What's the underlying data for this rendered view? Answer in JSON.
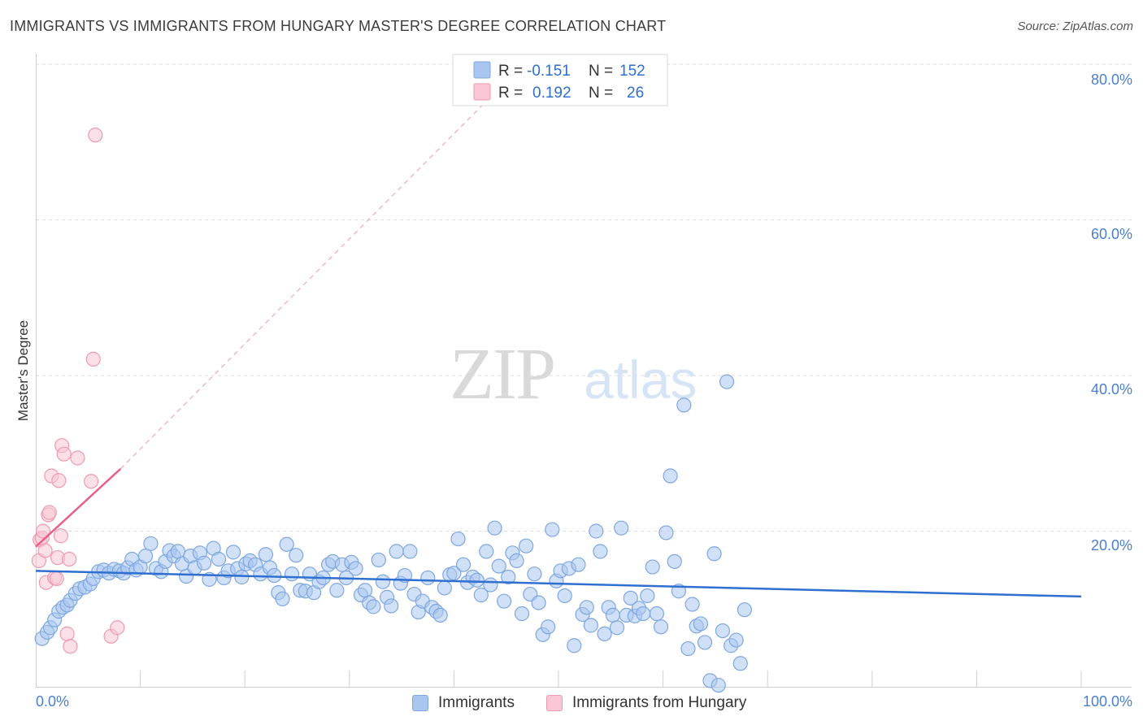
{
  "header": {
    "title": "IMMIGRANTS VS IMMIGRANTS FROM HUNGARY MASTER'S DEGREE CORRELATION CHART",
    "source": "Source: ZipAtlas.com"
  },
  "watermark": {
    "zip": "ZIP",
    "atlas": "atlas"
  },
  "legend_box": {
    "rows": [
      {
        "r_label": "R =",
        "r_value": "-0.151",
        "n_label": "N =",
        "n_value": "152",
        "color": "#a9c6ef"
      },
      {
        "r_label": "R =",
        "r_value": "0.192",
        "n_label": "N =",
        "n_value": "26",
        "color": "#f6b6c8"
      }
    ]
  },
  "bottom_legend": {
    "items": [
      {
        "label": "Immigrants",
        "color": "#a9c6ef",
        "border": "#7ea7e0"
      },
      {
        "label": "Immigrants from Hungary",
        "color": "#f8c6d4",
        "border": "#ee9ab2"
      }
    ]
  },
  "chart_data": {
    "type": "scatter",
    "title": "IMMIGRANTS VS IMMIGRANTS FROM HUNGARY MASTER'S DEGREE CORRELATION CHART",
    "xlabel": "",
    "ylabel": "Master's Degree",
    "xlim": [
      0,
      100
    ],
    "ylim": [
      0,
      80
    ],
    "x_tick_labels": [
      "0.0%",
      "100.0%"
    ],
    "y_ticks": [
      20,
      40,
      60,
      80
    ],
    "y_tick_labels": [
      "20.0%",
      "40.0%",
      "60.0%",
      "80.0%"
    ],
    "grid": true,
    "series": [
      {
        "name": "Immigrants",
        "color": "#a9c6ef",
        "stroke": "#7ea7e0",
        "points": [
          [
            0.6,
            6.2
          ],
          [
            1.1,
            7.0
          ],
          [
            1.4,
            7.6
          ],
          [
            1.8,
            8.6
          ],
          [
            2.2,
            9.7
          ],
          [
            2.6,
            10.2
          ],
          [
            3.0,
            10.5
          ],
          [
            3.3,
            11.1
          ],
          [
            3.8,
            12.0
          ],
          [
            4.2,
            12.6
          ],
          [
            4.7,
            12.8
          ],
          [
            5.2,
            13.2
          ],
          [
            5.5,
            13.9
          ],
          [
            6.0,
            14.8
          ],
          [
            6.5,
            15.0
          ],
          [
            7.0,
            14.6
          ],
          [
            7.5,
            15.1
          ],
          [
            8.0,
            14.9
          ],
          [
            8.4,
            14.6
          ],
          [
            8.8,
            15.3
          ],
          [
            9.2,
            16.4
          ],
          [
            9.6,
            15.0
          ],
          [
            10.0,
            15.4
          ],
          [
            10.5,
            16.8
          ],
          [
            11.0,
            18.4
          ],
          [
            11.5,
            15.2
          ],
          [
            12.0,
            14.8
          ],
          [
            12.4,
            16.1
          ],
          [
            12.8,
            17.5
          ],
          [
            13.2,
            16.8
          ],
          [
            13.6,
            17.4
          ],
          [
            14.0,
            15.8
          ],
          [
            14.4,
            14.2
          ],
          [
            14.8,
            16.8
          ],
          [
            15.2,
            15.3
          ],
          [
            15.7,
            17.2
          ],
          [
            16.1,
            15.9
          ],
          [
            16.6,
            13.8
          ],
          [
            17.0,
            17.8
          ],
          [
            17.5,
            16.4
          ],
          [
            18.0,
            14.0
          ],
          [
            18.4,
            14.9
          ],
          [
            18.9,
            17.3
          ],
          [
            19.3,
            15.2
          ],
          [
            19.7,
            14.1
          ],
          [
            20.1,
            15.8
          ],
          [
            20.5,
            16.2
          ],
          [
            21.0,
            15.7
          ],
          [
            21.5,
            14.5
          ],
          [
            22.0,
            17.0
          ],
          [
            22.4,
            15.3
          ],
          [
            22.8,
            14.3
          ],
          [
            23.2,
            12.1
          ],
          [
            23.6,
            11.3
          ],
          [
            24.0,
            18.3
          ],
          [
            24.5,
            14.5
          ],
          [
            24.9,
            16.9
          ],
          [
            25.3,
            12.4
          ],
          [
            25.8,
            12.3
          ],
          [
            26.2,
            14.5
          ],
          [
            26.6,
            12.1
          ],
          [
            27.1,
            13.5
          ],
          [
            27.5,
            14.0
          ],
          [
            28.0,
            15.7
          ],
          [
            28.4,
            16.1
          ],
          [
            28.8,
            12.4
          ],
          [
            29.3,
            15.7
          ],
          [
            29.7,
            14.0
          ],
          [
            30.2,
            16.0
          ],
          [
            30.6,
            15.2
          ],
          [
            31.1,
            11.8
          ],
          [
            31.5,
            12.4
          ],
          [
            31.9,
            10.8
          ],
          [
            32.3,
            10.3
          ],
          [
            32.8,
            16.3
          ],
          [
            33.2,
            13.5
          ],
          [
            33.6,
            11.5
          ],
          [
            34.0,
            10.4
          ],
          [
            34.5,
            17.4
          ],
          [
            34.9,
            13.3
          ],
          [
            35.3,
            14.3
          ],
          [
            35.8,
            17.4
          ],
          [
            36.2,
            11.9
          ],
          [
            36.6,
            9.6
          ],
          [
            37.0,
            11.0
          ],
          [
            37.5,
            14.0
          ],
          [
            37.9,
            10.2
          ],
          [
            38.3,
            9.7
          ],
          [
            38.7,
            9.2
          ],
          [
            39.1,
            12.7
          ],
          [
            39.6,
            14.4
          ],
          [
            40.0,
            14.6
          ],
          [
            40.4,
            19.0
          ],
          [
            40.9,
            15.7
          ],
          [
            41.3,
            13.4
          ],
          [
            41.8,
            14.1
          ],
          [
            42.2,
            13.7
          ],
          [
            42.6,
            11.8
          ],
          [
            43.1,
            17.4
          ],
          [
            43.5,
            13.1
          ],
          [
            43.9,
            20.4
          ],
          [
            44.3,
            15.5
          ],
          [
            44.8,
            11.0
          ],
          [
            45.2,
            14.1
          ],
          [
            45.6,
            17.2
          ],
          [
            46.0,
            16.2
          ],
          [
            46.5,
            9.4
          ],
          [
            46.9,
            18.1
          ],
          [
            47.3,
            11.9
          ],
          [
            47.7,
            14.5
          ],
          [
            48.1,
            10.8
          ],
          [
            48.5,
            6.7
          ],
          [
            49.0,
            7.7
          ],
          [
            49.4,
            20.2
          ],
          [
            49.8,
            13.6
          ],
          [
            50.2,
            14.9
          ],
          [
            50.6,
            11.7
          ],
          [
            51.0,
            15.2
          ],
          [
            51.5,
            5.3
          ],
          [
            51.9,
            15.7
          ],
          [
            52.3,
            9.3
          ],
          [
            52.7,
            10.2
          ],
          [
            53.1,
            7.9
          ],
          [
            53.6,
            20.0
          ],
          [
            54.0,
            17.4
          ],
          [
            54.4,
            6.8
          ],
          [
            54.8,
            10.2
          ],
          [
            55.2,
            9.2
          ],
          [
            55.6,
            7.6
          ],
          [
            56.0,
            20.4
          ],
          [
            56.5,
            9.2
          ],
          [
            56.9,
            11.4
          ],
          [
            57.3,
            9.1
          ],
          [
            57.7,
            10.1
          ],
          [
            58.1,
            9.4
          ],
          [
            58.5,
            11.7
          ],
          [
            59.0,
            15.4
          ],
          [
            59.4,
            9.4
          ],
          [
            59.8,
            7.7
          ],
          [
            60.3,
            19.8
          ],
          [
            60.7,
            27.1
          ],
          [
            61.1,
            16.1
          ],
          [
            61.5,
            12.3
          ],
          [
            62.0,
            36.2
          ],
          [
            62.4,
            4.9
          ],
          [
            62.8,
            10.6
          ],
          [
            63.2,
            7.8
          ],
          [
            63.6,
            8.1
          ],
          [
            64.0,
            5.7
          ],
          [
            64.5,
            0.8
          ],
          [
            64.9,
            17.1
          ],
          [
            65.3,
            0.2
          ],
          [
            65.7,
            7.2
          ],
          [
            66.1,
            39.2
          ],
          [
            66.5,
            5.3
          ],
          [
            67.0,
            6.0
          ],
          [
            67.4,
            3.0
          ],
          [
            67.8,
            9.9
          ]
        ],
        "trend": {
          "x": [
            0,
            100
          ],
          "y": [
            14.9,
            11.6
          ]
        }
      },
      {
        "name": "Immigrants from Hungary",
        "color": "#f8c6d4",
        "stroke": "#ee9ab2",
        "points": [
          [
            0.3,
            16.2
          ],
          [
            0.4,
            18.9
          ],
          [
            0.6,
            19.1
          ],
          [
            0.7,
            20.0
          ],
          [
            0.9,
            17.5
          ],
          [
            1.0,
            13.4
          ],
          [
            1.2,
            22.1
          ],
          [
            1.3,
            22.4
          ],
          [
            1.5,
            27.1
          ],
          [
            1.8,
            14.0
          ],
          [
            2.0,
            13.9
          ],
          [
            2.1,
            16.6
          ],
          [
            2.2,
            26.5
          ],
          [
            2.4,
            19.4
          ],
          [
            2.5,
            31.0
          ],
          [
            2.7,
            29.9
          ],
          [
            3.0,
            6.8
          ],
          [
            3.2,
            16.4
          ],
          [
            3.3,
            5.2
          ],
          [
            4.0,
            29.4
          ],
          [
            5.3,
            26.4
          ],
          [
            5.5,
            42.1
          ],
          [
            5.7,
            70.9
          ],
          [
            7.2,
            6.5
          ],
          [
            7.8,
            7.6
          ]
        ],
        "trend": {
          "x": [
            0,
            8.1
          ],
          "y": [
            18.0,
            28.0
          ]
        },
        "trend_extension": {
          "x": [
            8.1,
            47.0
          ],
          "y": [
            28.0,
            80.5
          ]
        }
      }
    ]
  }
}
